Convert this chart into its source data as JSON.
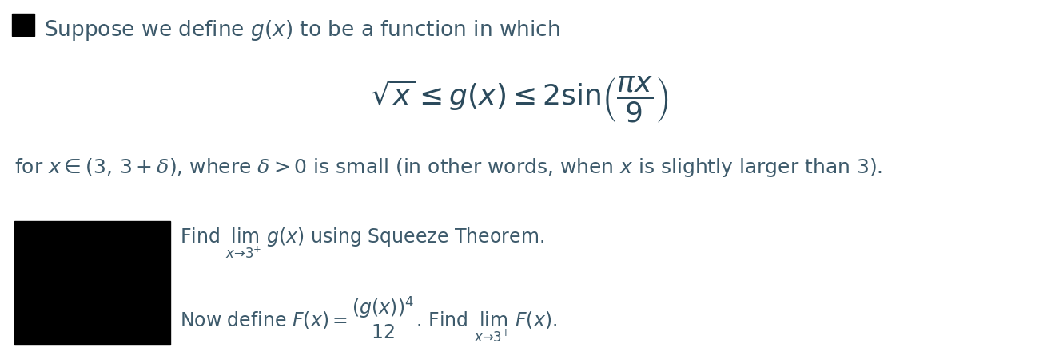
{
  "background_color": "#ffffff",
  "bullet_color": "#000000",
  "text_color": "#3d5a6b",
  "math_color": "#2b4a5c",
  "line1_text": "Suppose we define $g(x)$ to be a function in which",
  "line1_fontsize": 19,
  "formula_text": "$\\sqrt{x} \\leq g(x) \\leq 2\\sin\\!\\left(\\dfrac{\\pi x}{9}\\right)$",
  "formula_fontsize": 26,
  "line2_text": "for $x \\in (3,\\, 3 + \\delta)$, where $\\delta > 0$ is small (in other words, when $x$ is slightly larger than 3).",
  "line2_fontsize": 18,
  "subpart1_text": "Find $\\lim_{x \\to 3^+}\\, g(x)$ using Squeeze Theorem.",
  "subpart1_fontsize": 17,
  "subpart2_text": "Now define $F(x) = \\dfrac{(g(x))^4}{12}$. Find $\\lim_{x \\to 3^+}\\, F(x)$.",
  "subpart2_fontsize": 17,
  "fig_width": 13.0,
  "fig_height": 4.56,
  "dpi": 100
}
